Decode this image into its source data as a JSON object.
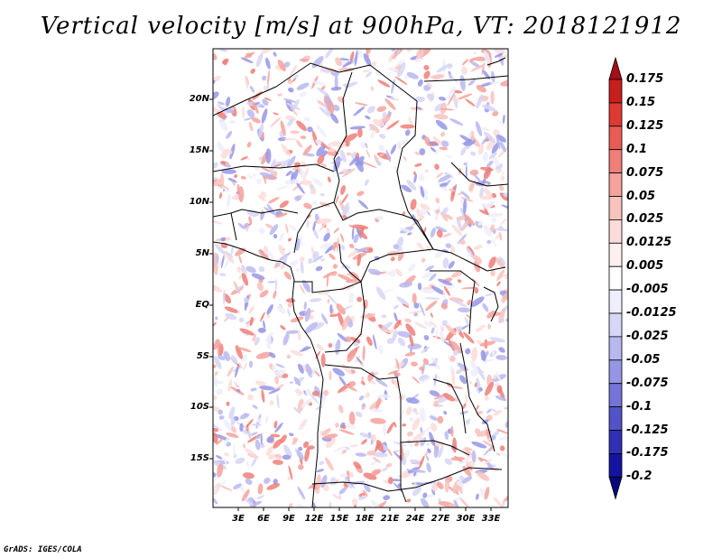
{
  "title": "Vertical velocity [m/s] at 900hPa, VT: 2018121912",
  "credit": "GrADS: IGES/COLA",
  "y_axis_labels": [
    "20N",
    "15N",
    "10N",
    "5N",
    "EQ",
    "5S",
    "10S",
    "15S"
  ],
  "x_axis_labels": [
    "3E",
    "6E",
    "9E",
    "12E",
    "15E",
    "18E",
    "21E",
    "24E",
    "27E",
    "30E",
    "33E"
  ],
  "colorbar": {
    "levels": [
      "0.175",
      "0.15",
      "0.125",
      "0.1",
      "0.075",
      "0.05",
      "0.025",
      "0.0125",
      "0.005",
      "-0.005",
      "-0.0125",
      "-0.025",
      "-0.05",
      "-0.075",
      "-0.1",
      "-0.125",
      "-0.175",
      "-0.2"
    ],
    "colors": [
      "#a50f15",
      "#c81e1e",
      "#de3a34",
      "#e85c55",
      "#ef7f78",
      "#f4a29c",
      "#f8c2bd",
      "#fbdcd9",
      "#fdf0ef",
      "#ffffff",
      "#eeeefc",
      "#d6d6f7",
      "#b8b8f0",
      "#9696e6",
      "#7474d9",
      "#5252c9",
      "#3030b4",
      "#1414a0",
      "#08087a"
    ]
  },
  "palette": {
    "warm": "#e8706a",
    "cool": "#8a8ae6",
    "border": "#000000"
  }
}
